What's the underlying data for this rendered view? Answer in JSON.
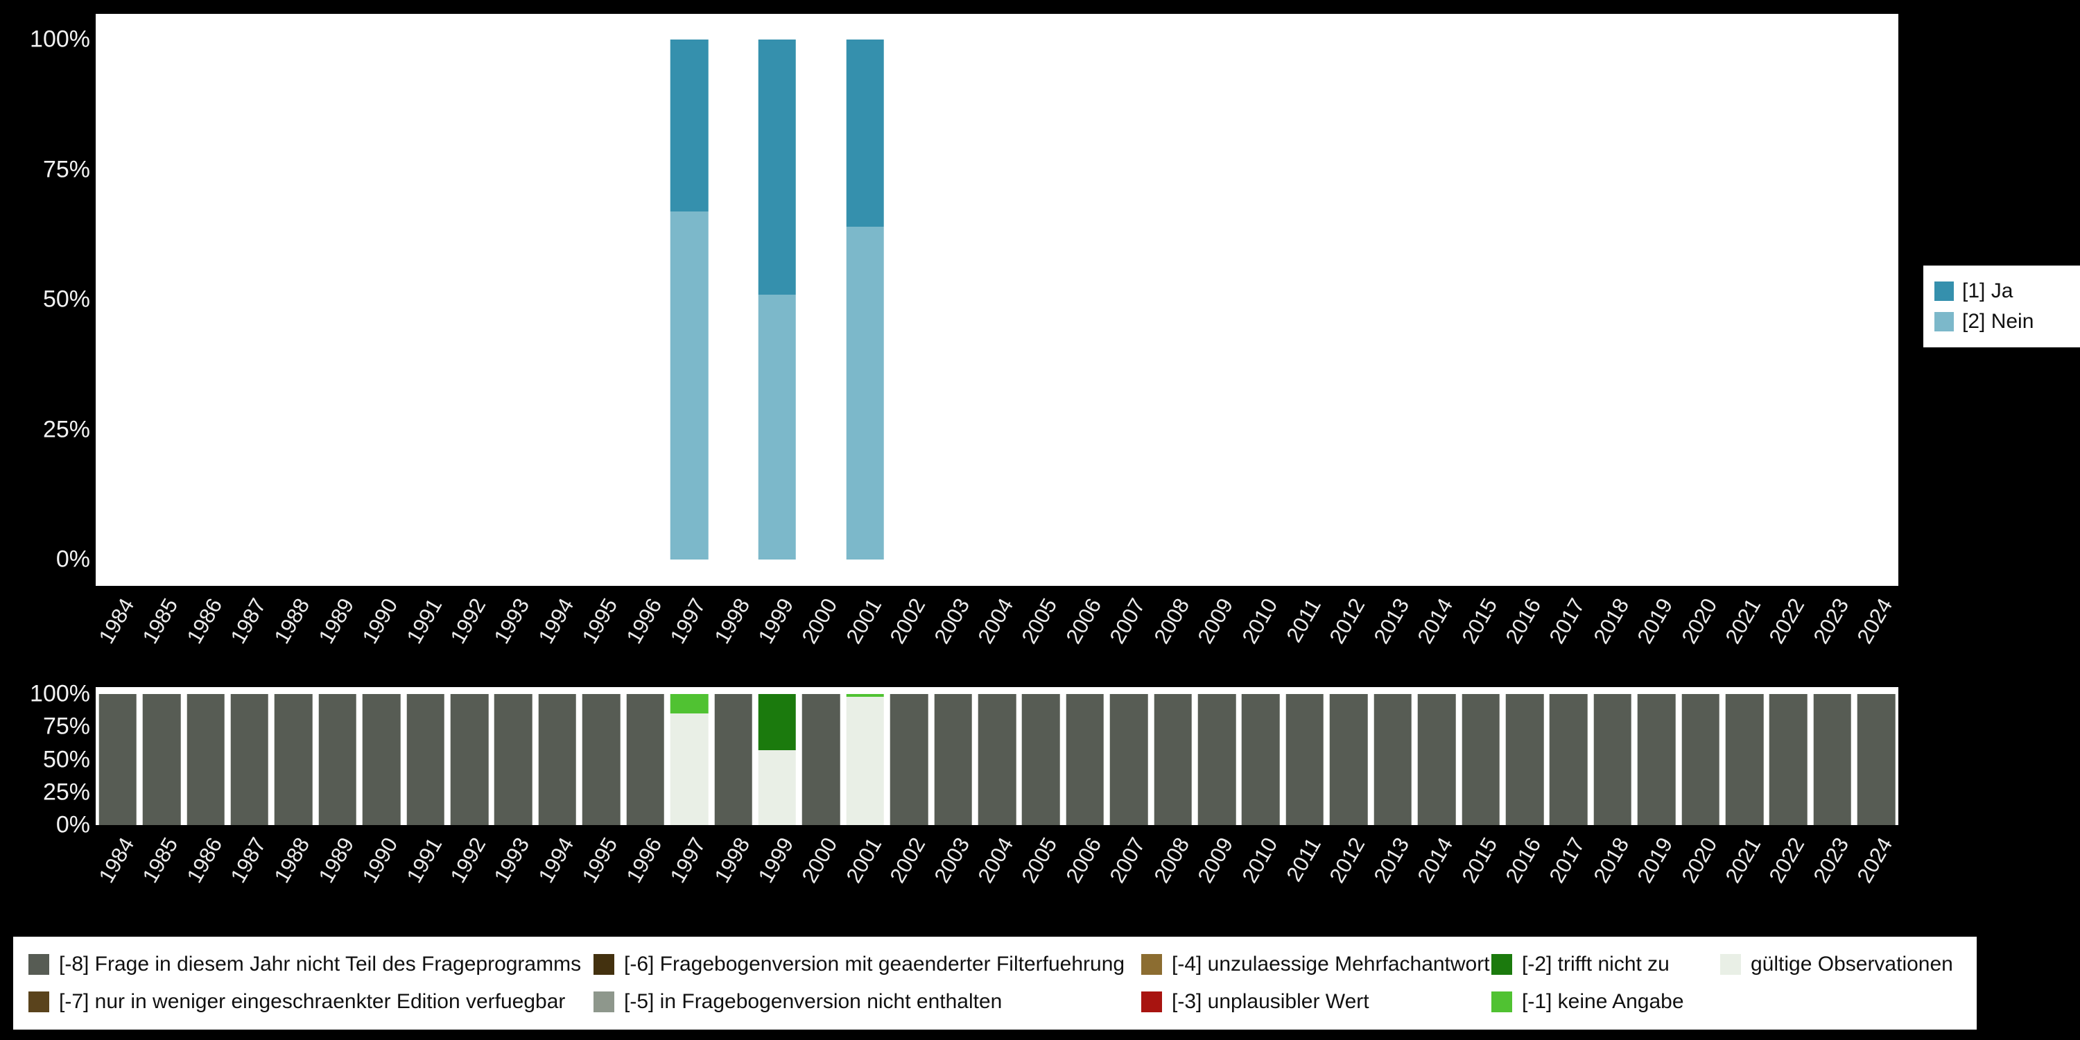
{
  "accent_colors": {
    "page_background": "#000000",
    "panel_background": "#ffffff",
    "axis_text": "#ececec"
  },
  "legend_right": {
    "items": [
      {
        "label": "[1] Ja",
        "color": "#3590ad"
      },
      {
        "label": "[2] Nein",
        "color": "#7cb8ca"
      }
    ]
  },
  "legend_bottom": {
    "rows": [
      [
        {
          "label": "[-8] Frage in diesem Jahr nicht Teil des Frageprogramms",
          "color": "#575c54"
        },
        {
          "label": "[-6] Fragebogenversion mit geaenderter Filterfuehrung",
          "color": "#43310f"
        },
        {
          "label": "[-4] unzulaessige Mehrfachantwort",
          "color": "#8c6d31"
        },
        {
          "label": "[-2] trifft nicht zu",
          "color": "#1b7a0d"
        },
        {
          "label": "gültige Observationen",
          "color": "#e9efe6"
        }
      ],
      [
        {
          "label": "[-7] nur in weniger eingeschraenkter Edition verfuegbar",
          "color": "#5a431c"
        },
        {
          "label": "[-5] in Fragebogenversion nicht enthalten",
          "color": "#8e978c"
        },
        {
          "label": "[-3] unplausibler Wert",
          "color": "#a81410"
        },
        {
          "label": "[-1] keine Angabe",
          "color": "#50c232"
        }
      ]
    ]
  },
  "chart_data": [
    {
      "type": "bar",
      "stacked": true,
      "title": "",
      "xlabel": "",
      "ylabel": "",
      "ylim": [
        0,
        100
      ],
      "grid": false,
      "legend_position": "right",
      "yticks": [
        {
          "pct": 100,
          "label": "100%"
        },
        {
          "pct": 75,
          "label": "75%"
        },
        {
          "pct": 50,
          "label": "50%"
        },
        {
          "pct": 25,
          "label": "25%"
        },
        {
          "pct": 0,
          "label": "0%"
        }
      ],
      "categories": [
        "1984",
        "1985",
        "1986",
        "1987",
        "1988",
        "1989",
        "1990",
        "1991",
        "1992",
        "1993",
        "1994",
        "1995",
        "1996",
        "1997",
        "1998",
        "1999",
        "2000",
        "2001",
        "2002",
        "2003",
        "2004",
        "2005",
        "2006",
        "2007",
        "2008",
        "2009",
        "2010",
        "2011",
        "2012",
        "2013",
        "2014",
        "2015",
        "2016",
        "2017",
        "2018",
        "2019",
        "2020",
        "2021",
        "2022",
        "2023",
        "2024"
      ],
      "series": [
        {
          "name": "[2] Nein",
          "color": "#7cb8ca",
          "values": {
            "1997": 67,
            "1999": 51,
            "2001": 64
          }
        },
        {
          "name": "[1] Ja",
          "color": "#3590ad",
          "values": {
            "1997": 33,
            "1999": 49,
            "2001": 36
          }
        }
      ]
    },
    {
      "type": "bar",
      "stacked": true,
      "title": "",
      "xlabel": "",
      "ylabel": "",
      "ylim": [
        0,
        100
      ],
      "grid": false,
      "legend_position": "bottom",
      "yticks": [
        {
          "pct": 100,
          "label": "100%"
        },
        {
          "pct": 75,
          "label": "75%"
        },
        {
          "pct": 50,
          "label": "50%"
        },
        {
          "pct": 25,
          "label": "25%"
        },
        {
          "pct": 0,
          "label": "0%"
        }
      ],
      "categories": [
        "1984",
        "1985",
        "1986",
        "1987",
        "1988",
        "1989",
        "1990",
        "1991",
        "1992",
        "1993",
        "1994",
        "1995",
        "1996",
        "1997",
        "1998",
        "1999",
        "2000",
        "2001",
        "2002",
        "2003",
        "2004",
        "2005",
        "2006",
        "2007",
        "2008",
        "2009",
        "2010",
        "2011",
        "2012",
        "2013",
        "2014",
        "2015",
        "2016",
        "2017",
        "2018",
        "2019",
        "2020",
        "2021",
        "2022",
        "2023",
        "2024"
      ],
      "series": [
        {
          "name": "gültige Observationen",
          "color": "#e9efe6",
          "values": {
            "1997": 85,
            "1999": 57,
            "2001": 98
          }
        },
        {
          "name": "[-1] keine Angabe",
          "color": "#50c232",
          "values": {
            "1997": 15,
            "2001": 2
          }
        },
        {
          "name": "[-2] trifft nicht zu",
          "color": "#1b7a0d",
          "values": {
            "1999": 43
          }
        },
        {
          "name": "[-8] Frage in diesem Jahr nicht Teil des Frageprogramms",
          "color": "#575c54",
          "values": {
            "1984": 100,
            "1985": 100,
            "1986": 100,
            "1987": 100,
            "1988": 100,
            "1989": 100,
            "1990": 100,
            "1991": 100,
            "1992": 100,
            "1993": 100,
            "1994": 100,
            "1995": 100,
            "1996": 100,
            "1998": 100,
            "2000": 100,
            "2002": 100,
            "2003": 100,
            "2004": 100,
            "2005": 100,
            "2006": 100,
            "2007": 100,
            "2008": 100,
            "2009": 100,
            "2010": 100,
            "2011": 100,
            "2012": 100,
            "2013": 100,
            "2014": 100,
            "2015": 100,
            "2016": 100,
            "2017": 100,
            "2018": 100,
            "2019": 100,
            "2020": 100,
            "2021": 100,
            "2022": 100,
            "2023": 100,
            "2024": 100
          }
        }
      ]
    }
  ]
}
